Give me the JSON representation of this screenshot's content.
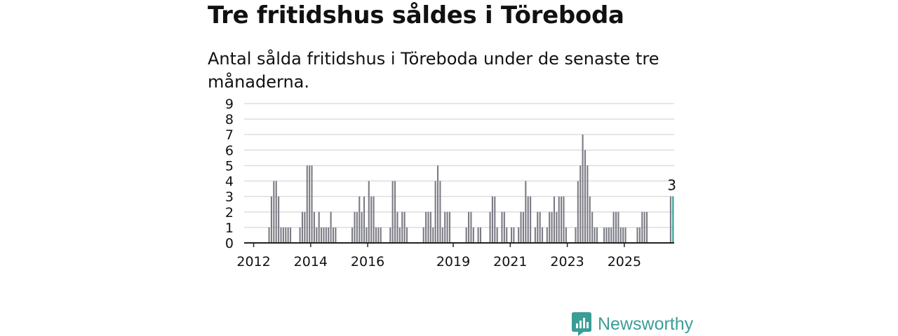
{
  "title": "Tre fritidshus såldes i Töreboda",
  "subtitle": "Antal sålda fritidshus i Töreboda under de senaste tre månaderna.",
  "brand": {
    "name": "Newsworthy",
    "icon": "bar-chart-logo-icon",
    "color": "#3a9e96"
  },
  "colors": {
    "bar": "#7b7b85",
    "highlight": "#2a9d8f",
    "grid": "#dddddd",
    "axis": "#222222"
  },
  "chart_data": {
    "type": "bar",
    "title": "Tre fritidshus såldes i Töreboda",
    "xlabel": "",
    "ylabel": "",
    "ylim": [
      0,
      9
    ],
    "yticks": [
      "0",
      "1",
      "2",
      "3",
      "4",
      "5",
      "6",
      "7",
      "8",
      "9"
    ],
    "xticks": [
      "2012",
      "2014",
      "2016",
      "2019",
      "2021",
      "2023",
      "2025"
    ],
    "grid": true,
    "bar_unit": "month",
    "start": "2011-09",
    "values": [
      0,
      0,
      0,
      0,
      0,
      0,
      0,
      0,
      0,
      0,
      1,
      3,
      4,
      4,
      3,
      1,
      1,
      1,
      1,
      1,
      0,
      0,
      0,
      1,
      2,
      2,
      5,
      5,
      5,
      2,
      1,
      2,
      1,
      1,
      1,
      1,
      2,
      1,
      1,
      0,
      0,
      0,
      0,
      0,
      0,
      1,
      2,
      2,
      3,
      2,
      3,
      1,
      4,
      3,
      3,
      1,
      1,
      1,
      0,
      0,
      0,
      1,
      4,
      4,
      2,
      1,
      2,
      2,
      1,
      0,
      0,
      0,
      0,
      0,
      0,
      1,
      2,
      2,
      2,
      1,
      4,
      5,
      4,
      1,
      2,
      2,
      2,
      0,
      0,
      0,
      0,
      0,
      0,
      1,
      2,
      2,
      1,
      0,
      1,
      1,
      0,
      0,
      0,
      2,
      3,
      3,
      1,
      0,
      2,
      2,
      1,
      0,
      1,
      1,
      0,
      1,
      2,
      2,
      4,
      3,
      3,
      0,
      1,
      2,
      2,
      1,
      0,
      1,
      2,
      2,
      3,
      2,
      3,
      3,
      3,
      1,
      0,
      0,
      0,
      1,
      4,
      5,
      7,
      6,
      5,
      3,
      2,
      1,
      1,
      0,
      0,
      1,
      1,
      1,
      1,
      2,
      2,
      2,
      1,
      1,
      1,
      0,
      0,
      0,
      0,
      1,
      1,
      2,
      2,
      2,
      0,
      0,
      0,
      0,
      0,
      0,
      0,
      0,
      0,
      3,
      3
    ],
    "highlight": {
      "label": "3",
      "value": 3
    }
  }
}
